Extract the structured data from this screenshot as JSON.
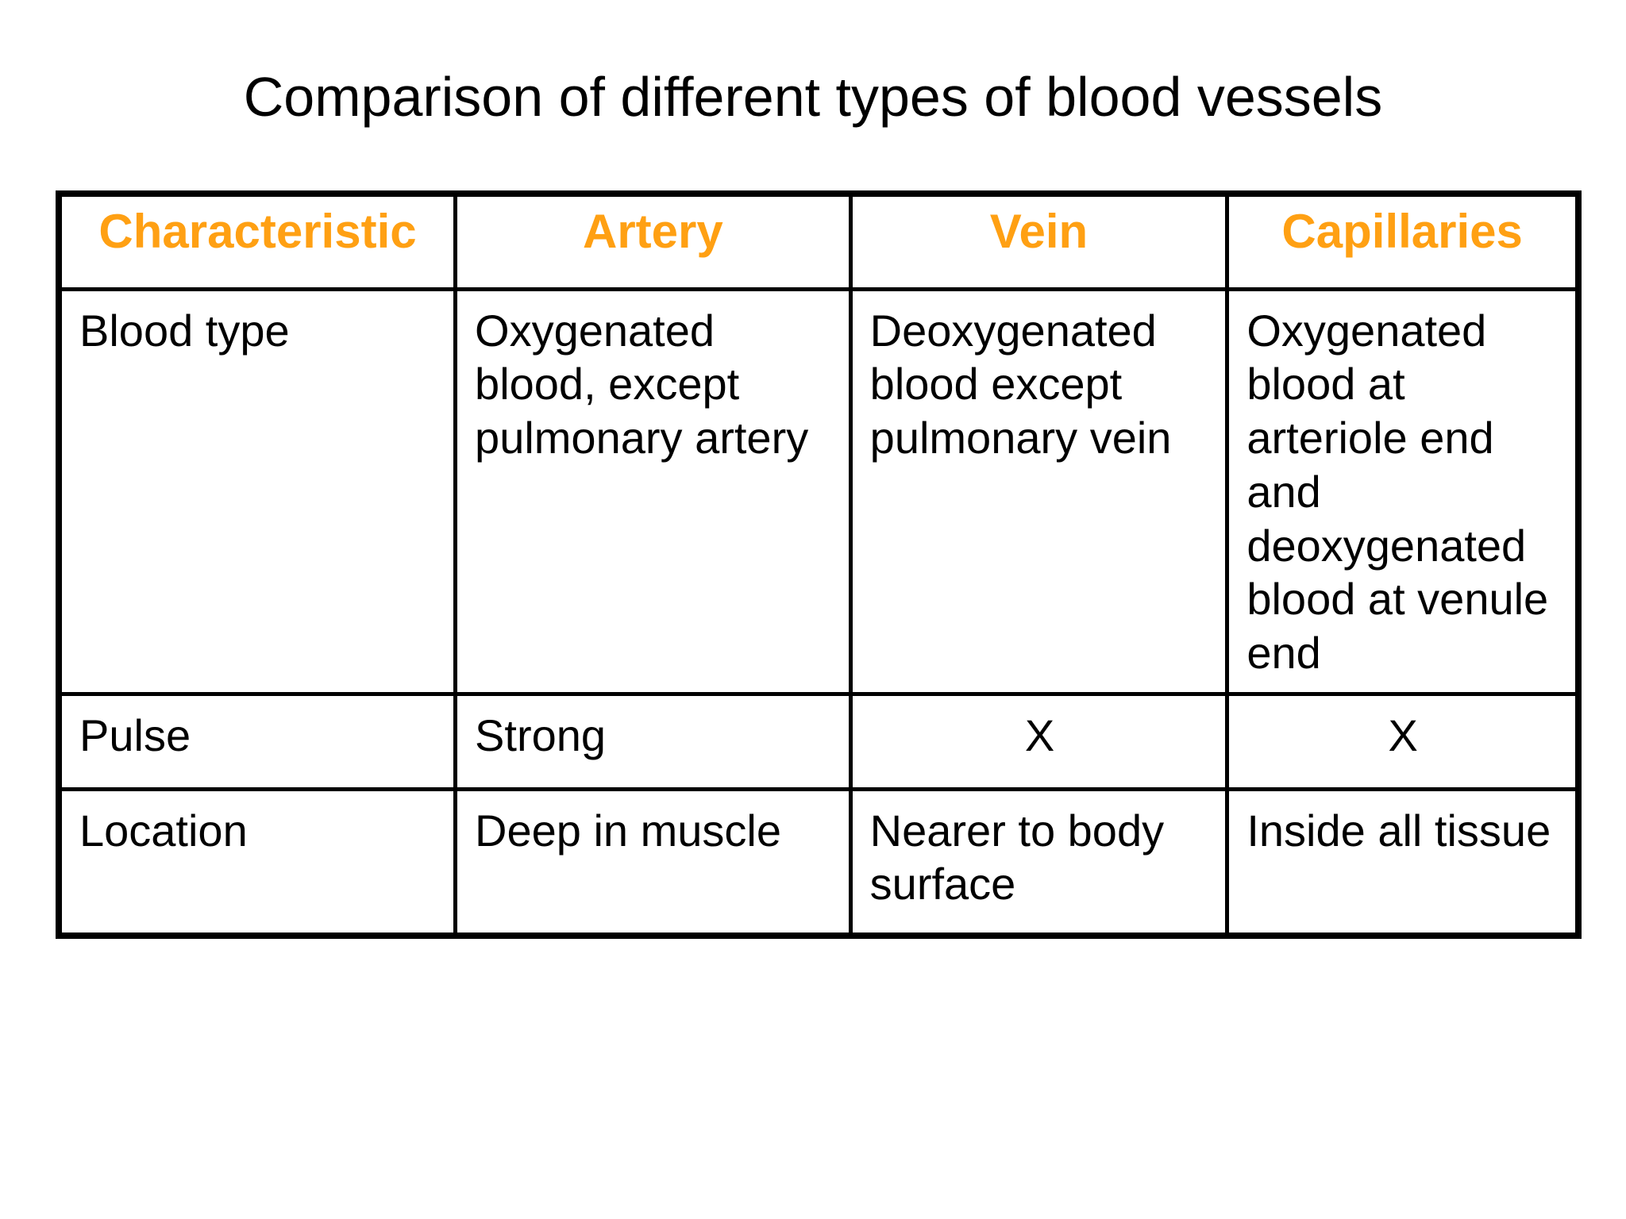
{
  "slide": {
    "title": "Comparison of different types of blood vessels"
  },
  "colors": {
    "header_text": "#FFA013",
    "border": "#000000",
    "background": "#FFFFFF",
    "body_text": "#000000"
  },
  "table": {
    "headers": {
      "characteristic": "Characteristic",
      "artery": "Artery",
      "vein": "Vein",
      "capillaries": "Capillaries"
    },
    "rows": [
      {
        "characteristic": "Blood type",
        "artery": "Oxygenated blood, except pulmonary artery",
        "vein": "Deoxygenated blood except pulmonary vein",
        "capillaries": "Oxygenated blood at arteriole end and deoxygenated blood at venule end"
      },
      {
        "characteristic": "Pulse",
        "artery": "Strong",
        "vein": "X",
        "capillaries": "X"
      },
      {
        "characteristic": "Location",
        "artery": "Deep in muscle",
        "vein": "Nearer to body surface",
        "capillaries": "Inside all tissue"
      }
    ]
  },
  "chart_data": {
    "type": "table",
    "title": "Comparison of different types of blood vessels",
    "columns": [
      "Characteristic",
      "Artery",
      "Vein",
      "Capillaries"
    ],
    "rows": [
      [
        "Blood type",
        "Oxygenated blood, except pulmonary artery",
        "Deoxygenated blood except pulmonary vein",
        "Oxygenated blood at arteriole end and deoxygenated blood at venule end"
      ],
      [
        "Pulse",
        "Strong",
        "X",
        "X"
      ],
      [
        "Location",
        "Deep in muscle",
        "Nearer to body surface",
        "Inside all tissue"
      ]
    ]
  }
}
